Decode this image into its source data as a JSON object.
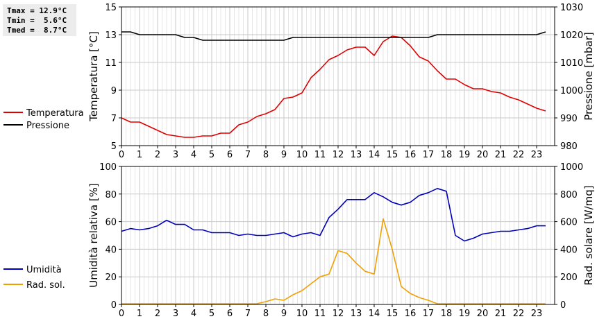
{
  "stats": {
    "tmax": "Tmax = 12.9°C",
    "tmin": "Tmin =  5.6°C",
    "tmed": "Tmed =  8.7°C"
  },
  "chart_data": [
    {
      "type": "line",
      "title": "",
      "xlabel": "",
      "x_ticks": [
        0,
        1,
        2,
        3,
        4,
        5,
        6,
        7,
        8,
        9,
        10,
        11,
        12,
        13,
        14,
        15,
        16,
        17,
        18,
        19,
        20,
        21,
        22,
        23
      ],
      "xlim": [
        0,
        24
      ],
      "ylabel_left": "Temperatura [°C]",
      "ylim_left": [
        5,
        15
      ],
      "yticks_left": [
        5,
        7,
        9,
        11,
        13,
        15
      ],
      "ylabel_right": "Pressione [mbar]",
      "ylim_right": [
        980,
        1030
      ],
      "yticks_right": [
        980,
        990,
        1000,
        1010,
        1020,
        1030
      ],
      "grid": true,
      "legend_placement": "left",
      "series": [
        {
          "name": "Temperatura",
          "color": "#dd0000",
          "axis": "left",
          "x": [
            0,
            0.5,
            1,
            1.5,
            2,
            2.5,
            3,
            3.5,
            4,
            4.5,
            5,
            5.5,
            6,
            6.5,
            7,
            7.5,
            8,
            8.5,
            9,
            9.5,
            10,
            10.5,
            11,
            11.5,
            12,
            12.5,
            13,
            13.5,
            14,
            14.5,
            15,
            15.5,
            16,
            16.5,
            17,
            17.5,
            18,
            18.5,
            19,
            19.5,
            20,
            20.5,
            21,
            21.5,
            22,
            22.5,
            23,
            23.5
          ],
          "values": [
            7.0,
            6.7,
            6.7,
            6.4,
            6.1,
            5.8,
            5.7,
            5.6,
            5.6,
            5.7,
            5.7,
            5.9,
            5.9,
            6.5,
            6.7,
            7.1,
            7.3,
            7.6,
            8.4,
            8.5,
            8.8,
            9.9,
            10.5,
            11.2,
            11.5,
            11.9,
            12.1,
            12.1,
            11.5,
            12.5,
            12.9,
            12.8,
            12.2,
            11.4,
            11.1,
            10.4,
            9.8,
            9.8,
            9.4,
            9.1,
            9.1,
            8.9,
            8.8,
            8.5,
            8.3,
            8.0,
            7.7,
            7.5
          ]
        },
        {
          "name": "Pressione",
          "color": "#000000",
          "axis": "right",
          "x": [
            0,
            0.5,
            1,
            1.5,
            2,
            2.5,
            3,
            3.5,
            4,
            4.5,
            5,
            5.5,
            6,
            6.5,
            7,
            7.5,
            8,
            8.5,
            9,
            9.5,
            10,
            10.5,
            11,
            11.5,
            12,
            12.5,
            13,
            13.5,
            14,
            14.5,
            15,
            15.5,
            16,
            16.5,
            17,
            17.5,
            18,
            18.5,
            19,
            19.5,
            20,
            20.5,
            21,
            21.5,
            22,
            22.5,
            23,
            23.5
          ],
          "values": [
            1021,
            1021,
            1020,
            1020,
            1020,
            1020,
            1020,
            1019,
            1019,
            1018,
            1018,
            1018,
            1018,
            1018,
            1018,
            1018,
            1018,
            1018,
            1018,
            1019,
            1019,
            1019,
            1019,
            1019,
            1019,
            1019,
            1019,
            1019,
            1019,
            1019,
            1019,
            1019,
            1019,
            1019,
            1019,
            1020,
            1020,
            1020,
            1020,
            1020,
            1020,
            1020,
            1020,
            1020,
            1020,
            1020,
            1020,
            1021
          ]
        }
      ]
    },
    {
      "type": "line",
      "title": "",
      "xlabel": "",
      "x_ticks": [
        0,
        1,
        2,
        3,
        4,
        5,
        6,
        7,
        8,
        9,
        10,
        11,
        12,
        13,
        14,
        15,
        16,
        17,
        18,
        19,
        20,
        21,
        22,
        23
      ],
      "xlim": [
        0,
        24
      ],
      "ylabel_left": "Umidità relativa [%]",
      "ylim_left": [
        0,
        100
      ],
      "yticks_left": [
        0,
        20,
        40,
        60,
        80,
        100
      ],
      "ylabel_right": "Rad. solare [W/mq]",
      "ylim_right": [
        0,
        1000
      ],
      "yticks_right": [
        0,
        200,
        400,
        600,
        800,
        1000
      ],
      "grid": true,
      "legend_placement": "left",
      "series": [
        {
          "name": "Umidità",
          "color": "#0000bb",
          "axis": "left",
          "x": [
            0,
            0.5,
            1,
            1.5,
            2,
            2.5,
            3,
            3.5,
            4,
            4.5,
            5,
            5.5,
            6,
            6.5,
            7,
            7.5,
            8,
            8.5,
            9,
            9.5,
            10,
            10.5,
            11,
            11.5,
            12,
            12.5,
            13,
            13.5,
            14,
            14.5,
            15,
            15.5,
            16,
            16.5,
            17,
            17.5,
            18,
            18.5,
            19,
            19.5,
            20,
            20.5,
            21,
            21.5,
            22,
            22.5,
            23,
            23.5
          ],
          "values": [
            53,
            55,
            54,
            55,
            57,
            61,
            58,
            58,
            54,
            54,
            52,
            52,
            52,
            50,
            51,
            50,
            50,
            51,
            52,
            49,
            51,
            52,
            50,
            63,
            69,
            76,
            76,
            76,
            81,
            78,
            74,
            72,
            74,
            79,
            81,
            84,
            82,
            50,
            46,
            48,
            51,
            52,
            53,
            53,
            54,
            55,
            57,
            57
          ]
        },
        {
          "name": "Rad. sol.",
          "color": "#f0a000",
          "axis": "right",
          "x": [
            0,
            1,
            2,
            3,
            4,
            5,
            6,
            7,
            7.5,
            8,
            8.5,
            9,
            9.5,
            10,
            10.5,
            11,
            11.5,
            12,
            12.5,
            13,
            13.5,
            14,
            14.5,
            15,
            15.5,
            16,
            16.5,
            17,
            17.5,
            18,
            19,
            20,
            21,
            22,
            23,
            23.5
          ],
          "values": [
            5,
            5,
            5,
            5,
            5,
            5,
            5,
            5,
            5,
            20,
            40,
            30,
            70,
            100,
            150,
            200,
            220,
            390,
            370,
            300,
            240,
            220,
            620,
            400,
            130,
            80,
            50,
            30,
            5,
            5,
            5,
            5,
            5,
            5,
            5,
            5
          ]
        }
      ]
    }
  ]
}
